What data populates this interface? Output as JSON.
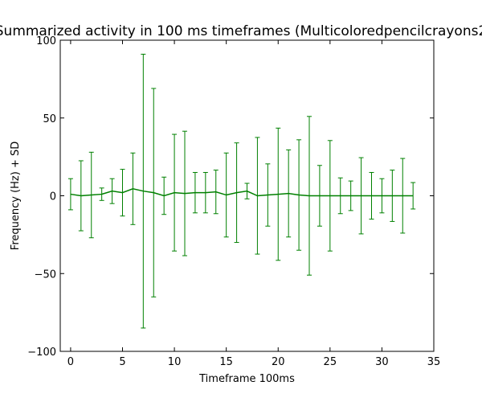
{
  "chart_data": {
    "type": "line",
    "title": "Summarized activity in 100 ms timeframes (Multicoloredpencilcrayons2",
    "xlabel": "Timeframe 100ms",
    "ylabel": "Frequency (Hz) + SD",
    "xlim": [
      -1,
      35
    ],
    "ylim": [
      -100,
      100
    ],
    "x_ticks": [
      0,
      5,
      10,
      15,
      20,
      25,
      30,
      35
    ],
    "y_ticks": [
      -100,
      -50,
      0,
      50,
      100
    ],
    "x_tick_labels": [
      "0",
      "5",
      "10",
      "15",
      "20",
      "25",
      "30",
      "35"
    ],
    "y_tick_labels": [
      "−100",
      "−50",
      "0",
      "50",
      "100"
    ],
    "grid": false,
    "series": [
      {
        "color": "#008000",
        "x": [
          0,
          1,
          2,
          3,
          4,
          5,
          6,
          7,
          8,
          9,
          10,
          11,
          12,
          13,
          14,
          15,
          16,
          17,
          18,
          19,
          20,
          21,
          22,
          23,
          24,
          25,
          26,
          27,
          28,
          29,
          30,
          31,
          32,
          33
        ],
        "y": [
          1,
          0,
          0.5,
          1,
          3,
          2,
          4.5,
          3,
          2,
          0,
          2,
          1.5,
          2,
          2,
          2.5,
          0.5,
          2,
          3,
          0,
          0.5,
          1,
          1.5,
          0.5,
          0,
          0,
          0,
          0,
          0,
          0,
          0,
          0,
          0,
          0,
          0
        ],
        "sd": [
          10,
          22.5,
          27.5,
          4,
          8,
          15,
          23,
          88,
          67,
          12,
          37.5,
          40,
          13,
          13,
          14,
          27,
          32,
          5,
          37.5,
          20,
          42.5,
          28,
          35.5,
          51,
          19.5,
          35.5,
          11.5,
          9.5,
          24.5,
          15,
          11,
          16.5,
          24,
          8.5
        ]
      }
    ]
  }
}
